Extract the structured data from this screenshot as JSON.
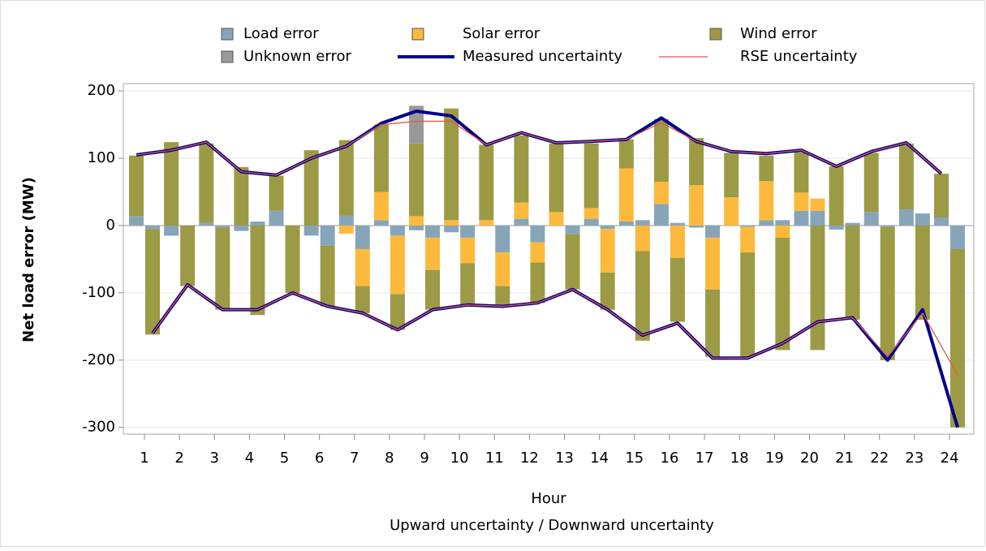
{
  "chart_data": {
    "type": "stacked-bar-line",
    "xlabel": "Hour",
    "subtitle": "Upward uncertainty / Downward uncertainty",
    "ylabel": "Net load error (MW)",
    "categories": [
      "1",
      "2",
      "3",
      "4",
      "5",
      "6",
      "7",
      "8",
      "9",
      "10",
      "11",
      "12",
      "13",
      "14",
      "15",
      "16",
      "17",
      "18",
      "19",
      "20",
      "21",
      "22",
      "23",
      "24"
    ],
    "ylim": [
      -310,
      211
    ],
    "yticks": [
      200,
      100,
      0,
      -100,
      -200,
      -300
    ],
    "grid": true,
    "bar_series": [
      {
        "name": "Load error",
        "color": "#87a5b8",
        "up": [
          14,
          -15,
          4,
          -8,
          22,
          -15,
          15,
          8,
          -7,
          -10,
          0,
          10,
          0,
          10,
          6,
          32,
          -3,
          0,
          8,
          22,
          -6,
          20,
          24,
          12
        ],
        "down": [
          -5,
          0,
          -3,
          6,
          0,
          -30,
          -35,
          -15,
          -18,
          -18,
          -40,
          -25,
          -13,
          -5,
          8,
          4,
          -18,
          -2,
          8,
          22,
          4,
          -2,
          18,
          -35
        ]
      },
      {
        "name": "Solar error",
        "color": "#fdb93c",
        "up": [
          0,
          0,
          0,
          0,
          0,
          0,
          -12,
          42,
          14,
          8,
          8,
          24,
          20,
          16,
          79,
          33,
          60,
          42,
          58,
          27,
          0,
          0,
          0,
          0
        ],
        "down": [
          0,
          0,
          0,
          0,
          0,
          0,
          -55,
          -87,
          -48,
          -38,
          -50,
          -30,
          0,
          -65,
          -38,
          -48,
          -77,
          -38,
          -18,
          18,
          0,
          0,
          0,
          0
        ]
      },
      {
        "name": "Wind error",
        "color": "#9c9a45",
        "up": [
          90,
          124,
          118,
          87,
          52,
          112,
          112,
          100,
          108,
          166,
          112,
          100,
          102,
          96,
          43,
          93,
          70,
          66,
          38,
          60,
          88,
          88,
          98,
          65
        ],
        "down": [
          -157,
          -90,
          -122,
          -133,
          -100,
          -90,
          -40,
          -53,
          -59,
          -62,
          -30,
          -60,
          -82,
          -55,
          -133,
          -95,
          -100,
          -155,
          -167,
          -185,
          -140,
          -198,
          -140,
          -265
        ]
      },
      {
        "name": "Unknown error",
        "color": "#999999",
        "up": [
          0,
          0,
          0,
          0,
          0,
          0,
          0,
          0,
          56,
          0,
          0,
          0,
          0,
          0,
          0,
          0,
          0,
          0,
          0,
          0,
          0,
          0,
          0,
          0
        ],
        "down": [
          0,
          0,
          0,
          0,
          0,
          0,
          0,
          0,
          0,
          0,
          0,
          0,
          0,
          0,
          0,
          0,
          0,
          0,
          0,
          0,
          0,
          0,
          0,
          0
        ]
      }
    ],
    "line_series": [
      {
        "name": "Measured uncertainty",
        "color": "#00008b",
        "width": 4,
        "up": [
          105,
          112,
          124,
          80,
          75,
          100,
          118,
          152,
          170,
          163,
          120,
          138,
          123,
          125,
          128,
          160,
          125,
          110,
          107,
          112,
          88,
          110,
          123,
          77
        ],
        "down": [
          -160,
          -88,
          -125,
          -125,
          -100,
          -120,
          -130,
          -155,
          -125,
          -118,
          -120,
          -115,
          -95,
          -125,
          -163,
          -145,
          -197,
          -197,
          -175,
          -143,
          -137,
          -200,
          -125,
          -300
        ]
      },
      {
        "name": "RSE uncertainty",
        "color": "#e0584a",
        "width": 1.3,
        "up": [
          105,
          112,
          124,
          80,
          75,
          100,
          118,
          150,
          155,
          155,
          120,
          138,
          123,
          125,
          128,
          153,
          125,
          110,
          107,
          112,
          88,
          110,
          123,
          77
        ],
        "down": [
          -160,
          -88,
          -125,
          -125,
          -100,
          -120,
          -130,
          -155,
          -125,
          -118,
          -120,
          -115,
          -95,
          -125,
          -163,
          -145,
          -197,
          -197,
          -175,
          -143,
          -137,
          -195,
          -130,
          -222
        ]
      }
    ]
  }
}
